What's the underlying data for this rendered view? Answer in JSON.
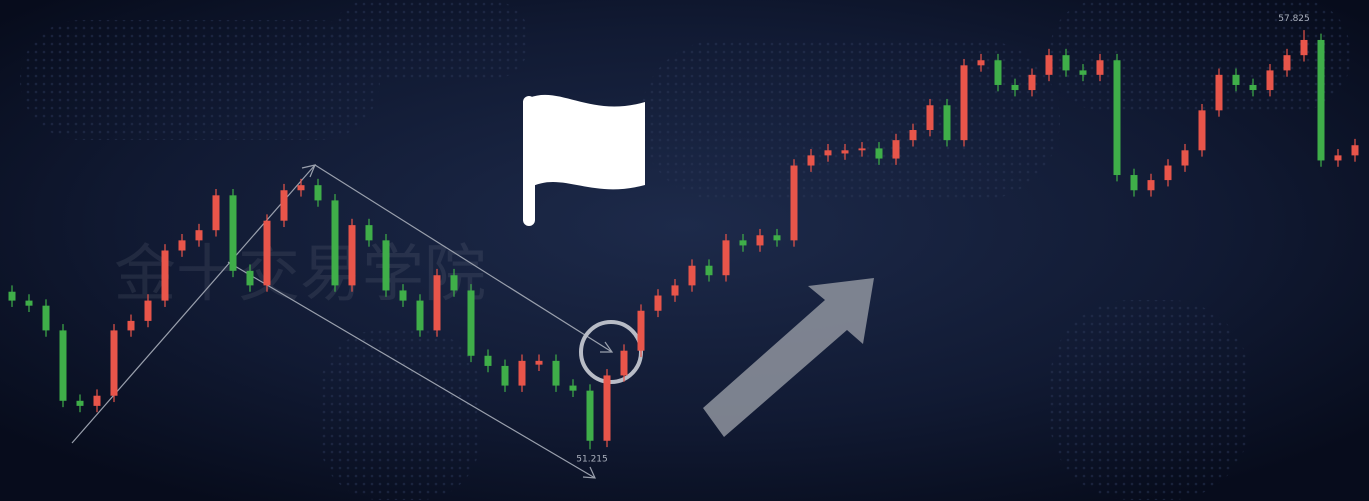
{
  "chart_data": {
    "type": "candlestick",
    "watermark": "金十交易学院",
    "ylim": [
      50.4,
      58.3
    ],
    "up_color": "#e8554a",
    "down_color": "#3fae49",
    "open": [
      53.7,
      53.56,
      53.48,
      53.09,
      51.98,
      51.9,
      52.06,
      53.09,
      53.24,
      53.56,
      54.35,
      54.51,
      54.67,
      55.22,
      54.03,
      53.8,
      54.82,
      55.3,
      55.38,
      55.14,
      53.8,
      54.75,
      54.51,
      53.72,
      53.56,
      53.09,
      53.96,
      53.72,
      52.69,
      52.53,
      52.22,
      52.55,
      52.61,
      52.22,
      52.14,
      51.35,
      52.38,
      52.77,
      53.4,
      53.64,
      53.8,
      54.11,
      53.96,
      54.51,
      54.43,
      54.59,
      54.51,
      55.69,
      55.85,
      55.88,
      55.93,
      55.96,
      55.8,
      56.09,
      56.25,
      56.64,
      56.09,
      57.27,
      57.35,
      56.96,
      56.88,
      57.12,
      57.43,
      57.19,
      57.12,
      57.35,
      55.54,
      55.3,
      55.46,
      55.69,
      55.93,
      56.56,
      57.12,
      56.96,
      56.88,
      57.19,
      57.43,
      57.67,
      55.77,
      55.85
    ],
    "close": [
      53.56,
      53.48,
      53.09,
      51.98,
      51.9,
      52.06,
      53.09,
      53.24,
      53.56,
      54.35,
      54.51,
      54.67,
      55.22,
      54.03,
      53.8,
      54.82,
      55.3,
      55.38,
      55.14,
      53.8,
      54.75,
      54.51,
      53.72,
      53.56,
      53.09,
      53.96,
      53.72,
      52.69,
      52.53,
      52.22,
      52.61,
      52.61,
      52.22,
      52.14,
      51.35,
      52.38,
      52.77,
      53.4,
      53.64,
      53.8,
      54.11,
      53.96,
      54.51,
      54.43,
      54.59,
      54.51,
      55.69,
      55.85,
      55.93,
      55.93,
      55.96,
      55.8,
      56.09,
      56.25,
      56.64,
      56.09,
      57.27,
      57.35,
      56.96,
      56.88,
      57.12,
      57.43,
      57.19,
      57.12,
      57.35,
      55.54,
      55.3,
      55.46,
      55.69,
      55.93,
      56.56,
      57.12,
      56.96,
      56.88,
      57.19,
      57.43,
      57.67,
      55.77,
      55.85,
      56.01
    ],
    "high": [
      53.8,
      53.66,
      53.58,
      53.19,
      52.08,
      52.16,
      53.19,
      53.34,
      53.66,
      54.45,
      54.61,
      54.77,
      55.32,
      55.32,
      54.13,
      54.92,
      55.4,
      55.48,
      55.48,
      55.24,
      54.85,
      54.85,
      54.61,
      53.82,
      53.66,
      54.06,
      54.06,
      53.82,
      52.79,
      52.63,
      52.71,
      52.71,
      52.71,
      52.32,
      52.24,
      52.48,
      52.87,
      53.5,
      53.74,
      53.9,
      54.21,
      54.21,
      54.61,
      54.61,
      54.69,
      54.69,
      55.79,
      55.95,
      56.03,
      56.03,
      56.06,
      56.06,
      56.19,
      56.35,
      56.74,
      56.74,
      57.37,
      57.45,
      57.45,
      57.06,
      57.22,
      57.53,
      57.53,
      57.29,
      57.45,
      57.45,
      55.64,
      55.56,
      55.79,
      56.03,
      56.66,
      57.22,
      57.22,
      57.06,
      57.29,
      57.53,
      57.825,
      57.77,
      55.95,
      56.11
    ],
    "low": [
      53.46,
      53.38,
      52.99,
      51.88,
      51.8,
      51.8,
      51.96,
      52.99,
      53.14,
      53.46,
      54.25,
      54.41,
      54.57,
      53.93,
      53.7,
      53.7,
      54.72,
      55.2,
      55.04,
      53.7,
      53.7,
      54.41,
      53.62,
      53.46,
      52.99,
      52.99,
      53.62,
      52.59,
      52.43,
      52.12,
      52.12,
      52.45,
      52.12,
      52.04,
      51.215,
      51.25,
      52.28,
      52.67,
      53.3,
      53.54,
      53.7,
      53.86,
      53.86,
      54.33,
      54.33,
      54.41,
      54.41,
      55.59,
      55.75,
      55.78,
      55.83,
      55.7,
      55.7,
      55.99,
      56.15,
      55.99,
      55.99,
      57.17,
      56.86,
      56.78,
      56.78,
      57.02,
      57.09,
      57.02,
      57.02,
      55.44,
      55.2,
      55.2,
      55.36,
      55.59,
      55.83,
      56.46,
      56.86,
      56.78,
      56.78,
      57.09,
      57.33,
      55.67,
      55.67,
      55.75
    ]
  }
}
